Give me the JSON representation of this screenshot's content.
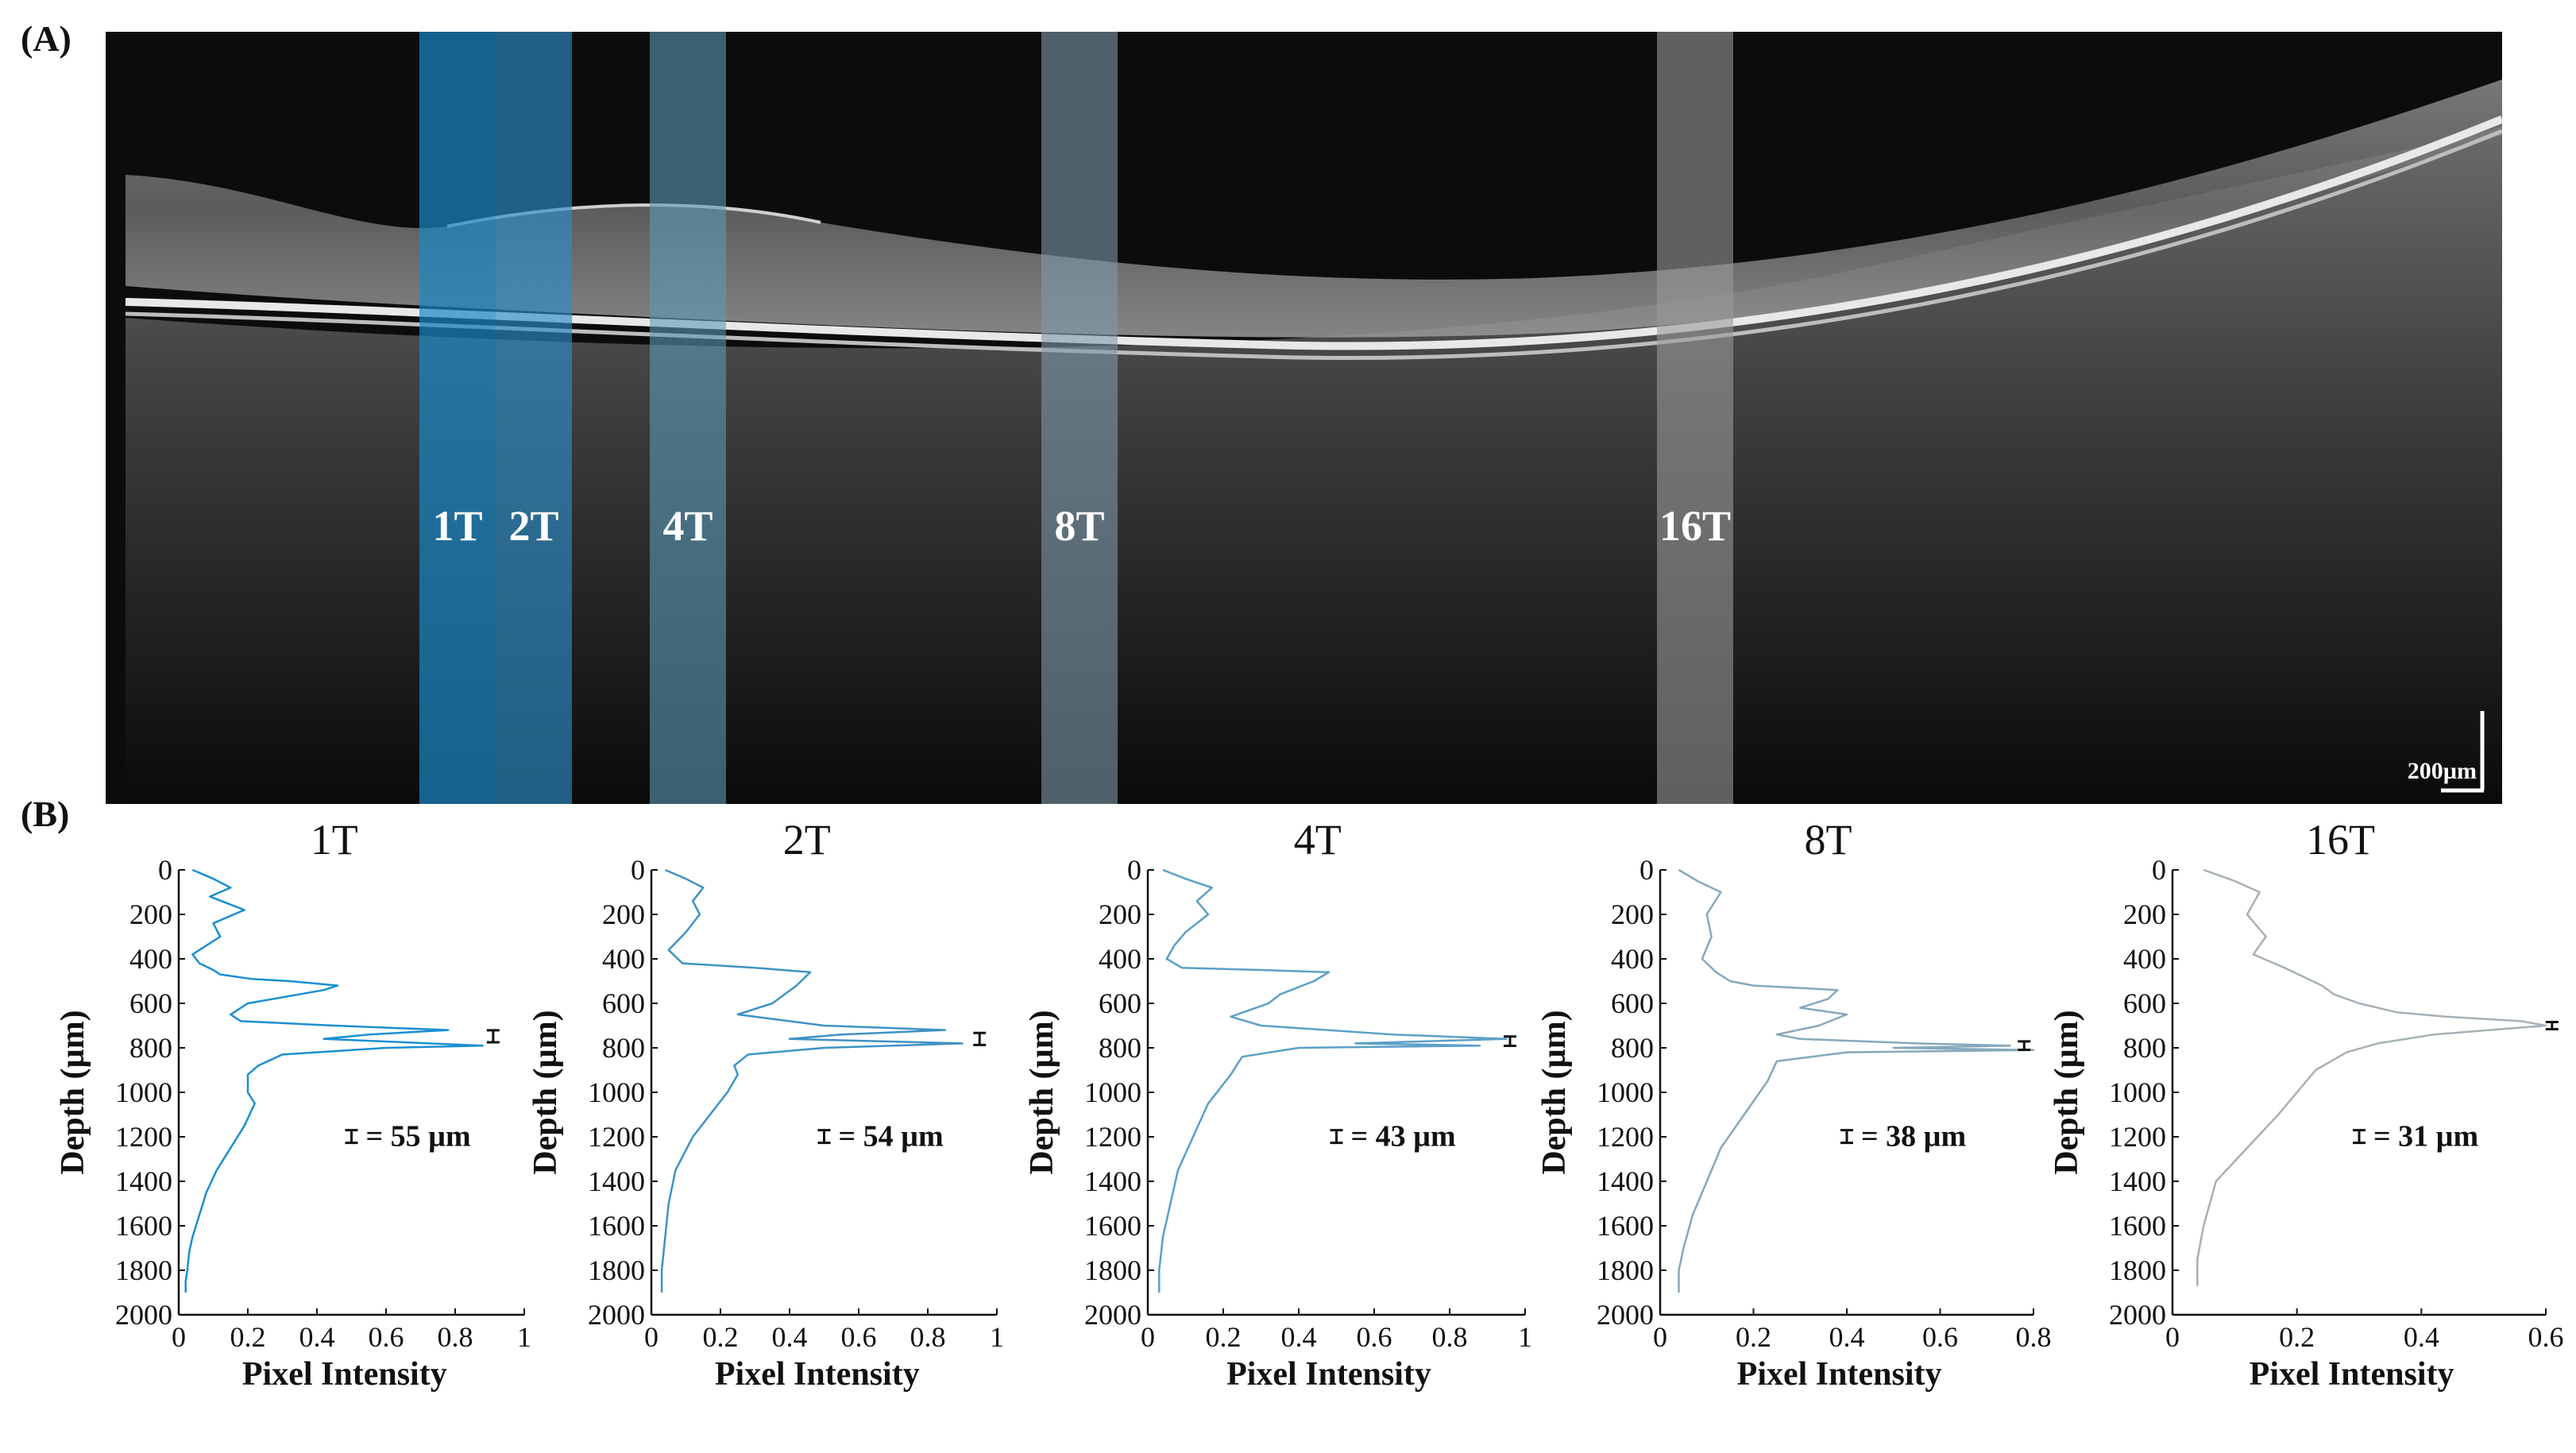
{
  "figure": {
    "panel_a_label": "(A)",
    "panel_b_label": "(B)",
    "scale_bar_label": "200µm",
    "strip_labels": [
      "1T",
      "2T",
      "4T",
      "8T",
      "16T"
    ],
    "strip_colors": [
      "#1b88c8",
      "#2c8cc4",
      "#5b9ab8",
      "#7d9aab",
      "#9a9a9a"
    ]
  },
  "chart_data": [
    {
      "type": "line",
      "title": "1T",
      "xlabel": "Pixel Intensity",
      "ylabel": "Depth (µm)",
      "xlim": [
        0,
        1
      ],
      "ylim": [
        2000,
        0
      ],
      "xticks": [
        "0",
        "0.2",
        "0.4",
        "0.6",
        "0.8",
        "1"
      ],
      "yticks": [
        "0",
        "200",
        "400",
        "600",
        "800",
        "1000",
        "1200",
        "1400",
        "1600",
        "1800",
        "2000"
      ],
      "color": "#1a8fd0",
      "annotation": "= 55 µm",
      "errorbar": {
        "x": 0.91,
        "y": 748,
        "half": 27
      },
      "series": [
        {
          "x": [
            0.04,
            0.1,
            0.15,
            0.09,
            0.19,
            0.1,
            0.12,
            0.04,
            0.06,
            0.1,
            0.12,
            0.21,
            0.32,
            0.46,
            0.42,
            0.2,
            0.15,
            0.18,
            0.45,
            0.78,
            0.55,
            0.42,
            0.88,
            0.6,
            0.3,
            0.23,
            0.2,
            0.2,
            0.22,
            0.19,
            0.15,
            0.11,
            0.08,
            0.06,
            0.04,
            0.03,
            0.025,
            0.02,
            0.02
          ],
          "y": [
            0,
            40,
            80,
            120,
            180,
            240,
            300,
            380,
            420,
            450,
            470,
            490,
            500,
            520,
            540,
            600,
            650,
            680,
            700,
            720,
            740,
            760,
            790,
            800,
            830,
            880,
            920,
            1000,
            1050,
            1150,
            1250,
            1350,
            1450,
            1550,
            1650,
            1720,
            1800,
            1850,
            1900
          ]
        }
      ]
    },
    {
      "type": "line",
      "title": "2T",
      "xlabel": "Pixel Intensity",
      "ylabel": "Depth (µm)",
      "xlim": [
        0,
        1
      ],
      "ylim": [
        2000,
        0
      ],
      "xticks": [
        "0",
        "0.2",
        "0.4",
        "0.6",
        "0.8",
        "1"
      ],
      "yticks": [
        "0",
        "200",
        "400",
        "600",
        "800",
        "1000",
        "1200",
        "1400",
        "1600",
        "1800",
        "2000"
      ],
      "color": "#3f92c4",
      "annotation": "= 54 µm",
      "errorbar": {
        "x": 0.95,
        "y": 760,
        "half": 27
      },
      "series": [
        {
          "x": [
            0.04,
            0.1,
            0.15,
            0.12,
            0.14,
            0.1,
            0.05,
            0.09,
            0.3,
            0.46,
            0.42,
            0.35,
            0.25,
            0.5,
            0.85,
            0.55,
            0.4,
            0.9,
            0.5,
            0.28,
            0.24,
            0.25,
            0.22,
            0.17,
            0.12,
            0.07,
            0.05,
            0.04,
            0.03,
            0.03
          ],
          "y": [
            0,
            40,
            80,
            140,
            200,
            280,
            360,
            420,
            440,
            460,
            520,
            600,
            650,
            700,
            720,
            740,
            760,
            780,
            800,
            830,
            880,
            920,
            1000,
            1100,
            1200,
            1350,
            1500,
            1650,
            1800,
            1900
          ]
        }
      ]
    },
    {
      "type": "line",
      "title": "4T",
      "xlabel": "Pixel Intensity",
      "ylabel": "Depth (µm)",
      "xlim": [
        0,
        1
      ],
      "ylim": [
        2000,
        0
      ],
      "xticks": [
        "0",
        "0.2",
        "0.4",
        "0.6",
        "0.8",
        "1"
      ],
      "yticks": [
        "0",
        "200",
        "400",
        "600",
        "800",
        "1000",
        "1200",
        "1400",
        "1600",
        "1800",
        "2000"
      ],
      "color": "#5aa0c8",
      "annotation": "= 43 µm",
      "errorbar": {
        "x": 0.96,
        "y": 770,
        "half": 21
      },
      "series": [
        {
          "x": [
            0.04,
            0.1,
            0.17,
            0.13,
            0.16,
            0.1,
            0.07,
            0.05,
            0.09,
            0.3,
            0.48,
            0.44,
            0.35,
            0.32,
            0.22,
            0.3,
            0.65,
            0.95,
            0.55,
            0.88,
            0.4,
            0.25,
            0.22,
            0.16,
            0.12,
            0.08,
            0.06,
            0.04,
            0.03,
            0.03
          ],
          "y": [
            0,
            40,
            80,
            140,
            200,
            280,
            340,
            400,
            440,
            450,
            460,
            500,
            560,
            600,
            660,
            700,
            740,
            760,
            780,
            790,
            800,
            840,
            920,
            1050,
            1200,
            1350,
            1500,
            1650,
            1800,
            1900
          ]
        }
      ]
    },
    {
      "type": "line",
      "title": "8T",
      "xlabel": "Pixel Intensity",
      "ylabel": "Depth (µm)",
      "xlim": [
        0,
        0.8
      ],
      "ylim": [
        2000,
        0
      ],
      "xticks": [
        "0",
        "0.2",
        "0.4",
        "0.6",
        "0.8"
      ],
      "yticks": [
        "0",
        "200",
        "400",
        "600",
        "800",
        "1000",
        "1200",
        "1400",
        "1600",
        "1800",
        "2000"
      ],
      "color": "#86a8bb",
      "annotation": "= 38 µm",
      "errorbar": {
        "x": 0.78,
        "y": 790,
        "half": 19
      },
      "series": [
        {
          "x": [
            0.04,
            0.08,
            0.13,
            0.1,
            0.11,
            0.09,
            0.12,
            0.15,
            0.2,
            0.38,
            0.36,
            0.3,
            0.4,
            0.34,
            0.25,
            0.3,
            0.55,
            0.75,
            0.5,
            0.8,
            0.4,
            0.25,
            0.23,
            0.18,
            0.13,
            0.1,
            0.07,
            0.05,
            0.04,
            0.04
          ],
          "y": [
            0,
            50,
            100,
            200,
            300,
            400,
            460,
            500,
            520,
            540,
            580,
            620,
            650,
            700,
            740,
            760,
            780,
            790,
            800,
            810,
            820,
            860,
            950,
            1100,
            1250,
            1400,
            1550,
            1700,
            1800,
            1900
          ]
        }
      ]
    },
    {
      "type": "line",
      "title": "16T",
      "xlabel": "Pixel Intensity",
      "ylabel": "Depth (µm)",
      "xlim": [
        0,
        0.6
      ],
      "ylim": [
        2000,
        0
      ],
      "xticks": [
        "0",
        "0.2",
        "0.4",
        "0.6"
      ],
      "yticks": [
        "0",
        "200",
        "400",
        "600",
        "800",
        "1000",
        "1200",
        "1400",
        "1600",
        "1800",
        "2000"
      ],
      "color": "#a6b0b6",
      "annotation": "= 31 µm",
      "errorbar": {
        "x": 0.61,
        "y": 700,
        "half": 16
      },
      "series": [
        {
          "x": [
            0.05,
            0.1,
            0.14,
            0.12,
            0.15,
            0.13,
            0.18,
            0.21,
            0.24,
            0.26,
            0.3,
            0.36,
            0.44,
            0.56,
            0.6,
            0.42,
            0.33,
            0.28,
            0.23,
            0.2,
            0.17,
            0.12,
            0.07,
            0.05,
            0.04,
            0.04
          ],
          "y": [
            0,
            50,
            100,
            200,
            300,
            380,
            440,
            480,
            520,
            560,
            600,
            640,
            660,
            680,
            700,
            740,
            780,
            820,
            900,
            1000,
            1100,
            1250,
            1400,
            1600,
            1750,
            1870
          ]
        }
      ]
    }
  ]
}
